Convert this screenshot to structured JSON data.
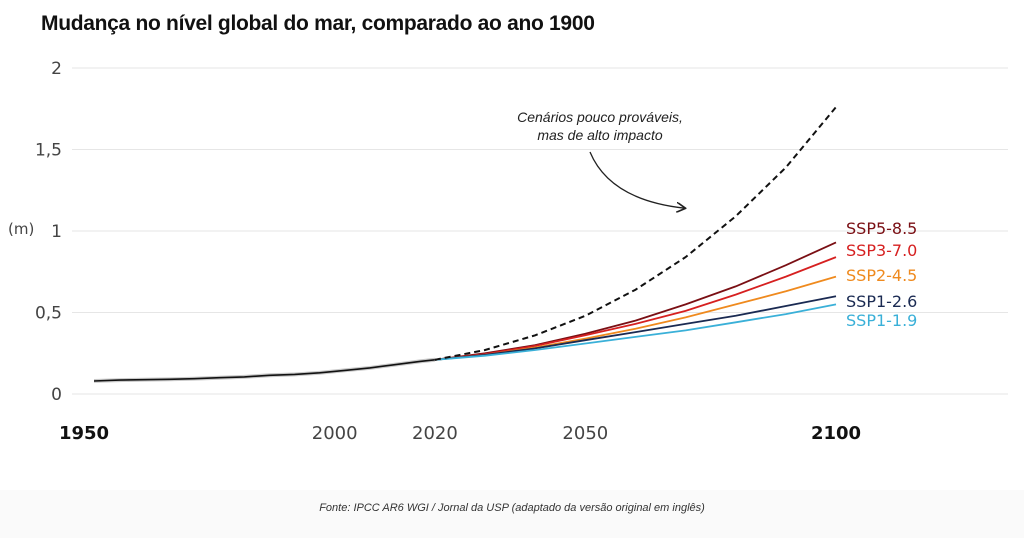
{
  "title": "Mudança no nível global do mar, comparado ao ano 1900",
  "source": "Fonte: IPCC AR6 WGI / Jornal da USP (adaptado da versão original em inglês)",
  "chart_data": {
    "type": "line",
    "title": "Mudança no nível global do mar, comparado ao ano 1900",
    "ylabel": "(m)",
    "xlim": [
      1950,
      2100
    ],
    "ylim": [
      0,
      2
    ],
    "grid": true,
    "y_ticks": [
      {
        "value": 0,
        "label": "0"
      },
      {
        "value": 0.5,
        "label": "0,5"
      },
      {
        "value": 1,
        "label": "1"
      },
      {
        "value": 1.5,
        "label": "1,5"
      },
      {
        "value": 2,
        "label": "2"
      }
    ],
    "x_ticks": [
      {
        "value": 1950,
        "label": "1950",
        "bold": true
      },
      {
        "value": 2000,
        "label": "2000",
        "bold": false
      },
      {
        "value": 2020,
        "label": "2020",
        "bold": false
      },
      {
        "value": 2050,
        "label": "2050",
        "bold": false
      },
      {
        "value": 2100,
        "label": "2100",
        "bold": true
      }
    ],
    "annotation": {
      "lines": [
        "Cenários pouco prováveis,",
        "mas de alto impacto"
      ],
      "arrow_to": {
        "x": 2070,
        "y": 1.14
      }
    },
    "historical": {
      "color": "#111111",
      "x": [
        1952,
        1957,
        1962,
        1967,
        1972,
        1977,
        1982,
        1987,
        1992,
        1997,
        2002,
        2007,
        2012,
        2017,
        2020
      ],
      "y": [
        0.08,
        0.085,
        0.088,
        0.09,
        0.094,
        0.1,
        0.105,
        0.115,
        0.12,
        0.13,
        0.145,
        0.16,
        0.18,
        0.2,
        0.21
      ]
    },
    "series": [
      {
        "name": "SSP5-8.5",
        "color": "#7a0f14",
        "x": [
          2020,
          2030,
          2040,
          2050,
          2060,
          2070,
          2080,
          2090,
          2100
        ],
        "y": [
          0.21,
          0.25,
          0.3,
          0.37,
          0.45,
          0.55,
          0.66,
          0.79,
          0.93
        ]
      },
      {
        "name": "SSP3-7.0",
        "color": "#d62020",
        "x": [
          2020,
          2030,
          2040,
          2050,
          2060,
          2070,
          2080,
          2090,
          2100
        ],
        "y": [
          0.21,
          0.245,
          0.295,
          0.36,
          0.43,
          0.51,
          0.61,
          0.72,
          0.84
        ]
      },
      {
        "name": "SSP2-4.5",
        "color": "#ef8a1e",
        "x": [
          2020,
          2030,
          2040,
          2050,
          2060,
          2070,
          2080,
          2090,
          2100
        ],
        "y": [
          0.21,
          0.24,
          0.285,
          0.34,
          0.4,
          0.47,
          0.55,
          0.63,
          0.72
        ]
      },
      {
        "name": "SSP1-2.6",
        "color": "#1a2a52",
        "x": [
          2020,
          2030,
          2040,
          2050,
          2060,
          2070,
          2080,
          2090,
          2100
        ],
        "y": [
          0.21,
          0.24,
          0.28,
          0.33,
          0.38,
          0.43,
          0.48,
          0.54,
          0.6
        ]
      },
      {
        "name": "SSP1-1.9",
        "color": "#3ab0d8",
        "x": [
          2020,
          2030,
          2040,
          2050,
          2060,
          2070,
          2080,
          2090,
          2100
        ],
        "y": [
          0.21,
          0.235,
          0.27,
          0.31,
          0.35,
          0.39,
          0.44,
          0.49,
          0.55
        ]
      },
      {
        "name": "",
        "color": "#111111",
        "dashed": true,
        "x": [
          2020,
          2030,
          2040,
          2050,
          2060,
          2070,
          2080,
          2090,
          2100
        ],
        "y": [
          0.21,
          0.27,
          0.36,
          0.48,
          0.64,
          0.84,
          1.09,
          1.39,
          1.76
        ]
      }
    ]
  }
}
